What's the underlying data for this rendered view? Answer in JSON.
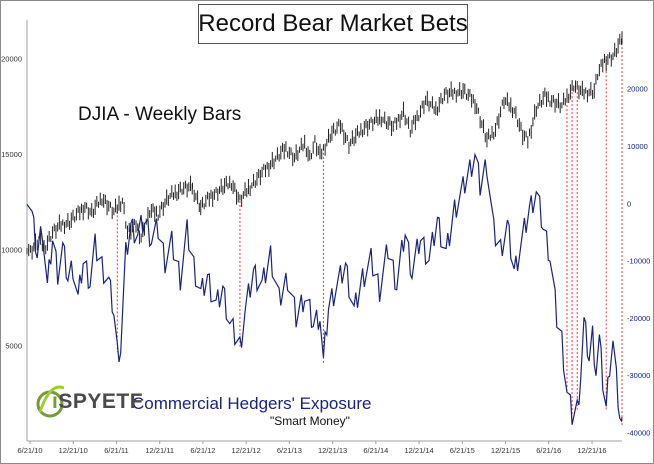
{
  "title": "Record Bear Market Bets",
  "annotations": {
    "djia": "DJIA - Weekly Bars",
    "hedgers": "Commercial Hedgers' Exposure",
    "smart_money": "\"Smart Money\""
  },
  "logo": {
    "text": "iSPYETF",
    "icon": "globe-swoosh-icon"
  },
  "colors": {
    "djia": "#222222",
    "hedgers": "#1a237e",
    "marker": "#e53935",
    "hedgers_extreme": "#d81b60"
  },
  "chart_data": {
    "type": "line",
    "title": "Record Bear Market Bets",
    "x_ticks": [
      "6/21/10",
      "12/21/10",
      "6/21/11",
      "12/21/11",
      "6/21/12",
      "12/21/12",
      "6/21/13",
      "12/21/13",
      "6/21/14",
      "12/21/14",
      "6/21/15",
      "12/21/15",
      "6/21/16",
      "12/21/16"
    ],
    "x_range": [
      "2010-06-21",
      "2017-03-01"
    ],
    "left_axis": {
      "ticks": [
        5000,
        10000,
        15000,
        20000
      ],
      "ylim": [
        0,
        22000
      ]
    },
    "right_axis": {
      "ticks": [
        -40000,
        -30000,
        -20000,
        -10000,
        0,
        10000,
        20000
      ],
      "ylim": [
        -41500,
        32000
      ]
    },
    "grid": false,
    "series": [
      {
        "name": "DJIA - Weekly Bars",
        "axis": "left",
        "style": "ohlc-bars",
        "points": [
          [
            "2010-06-21",
            10150
          ],
          [
            "2010-07-05",
            9900
          ],
          [
            "2010-08-09",
            10500
          ],
          [
            "2010-08-30",
            10050
          ],
          [
            "2010-10-04",
            10900
          ],
          [
            "2010-11-08",
            11300
          ],
          [
            "2010-12-13",
            11450
          ],
          [
            "2011-02-14",
            12250
          ],
          [
            "2011-03-14",
            11900
          ],
          [
            "2011-04-25",
            12700
          ],
          [
            "2011-06-13",
            11950
          ],
          [
            "2011-07-18",
            12600
          ],
          [
            "2011-08-08",
            10900
          ],
          [
            "2011-09-12",
            11300
          ],
          [
            "2011-10-03",
            10650
          ],
          [
            "2011-11-07",
            12000
          ],
          [
            "2011-12-12",
            11900
          ],
          [
            "2012-01-23",
            12700
          ],
          [
            "2012-03-19",
            13200
          ],
          [
            "2012-05-01",
            13250
          ],
          [
            "2012-06-04",
            12200
          ],
          [
            "2012-07-16",
            12800
          ],
          [
            "2012-09-10",
            13300
          ],
          [
            "2012-10-08",
            13500
          ],
          [
            "2012-11-12",
            12550
          ],
          [
            "2012-12-17",
            13200
          ],
          [
            "2013-01-21",
            13700
          ],
          [
            "2013-03-04",
            14300
          ],
          [
            "2013-05-20",
            15300
          ],
          [
            "2013-06-24",
            14800
          ],
          [
            "2013-08-05",
            15550
          ],
          [
            "2013-08-26",
            14800
          ],
          [
            "2013-09-16",
            15600
          ],
          [
            "2013-10-07",
            14900
          ],
          [
            "2013-11-18",
            16000
          ],
          [
            "2013-12-30",
            16500
          ],
          [
            "2014-02-03",
            15500
          ],
          [
            "2014-04-07",
            16400
          ],
          [
            "2014-06-16",
            16900
          ],
          [
            "2014-08-04",
            16400
          ],
          [
            "2014-09-15",
            17200
          ],
          [
            "2014-10-13",
            16200
          ],
          [
            "2014-12-15",
            17800
          ],
          [
            "2015-01-26",
            17300
          ],
          [
            "2015-03-02",
            18100
          ],
          [
            "2015-05-18",
            18300
          ],
          [
            "2015-07-06",
            17700
          ],
          [
            "2015-08-24",
            15700
          ],
          [
            "2015-09-28",
            16300
          ],
          [
            "2015-11-02",
            17800
          ],
          [
            "2015-12-14",
            17300
          ],
          [
            "2016-01-18",
            16000
          ],
          [
            "2016-02-08",
            15700
          ],
          [
            "2016-03-14",
            17400
          ],
          [
            "2016-04-18",
            18000
          ],
          [
            "2016-06-27",
            17500
          ],
          [
            "2016-08-15",
            18600
          ],
          [
            "2016-09-19",
            18200
          ],
          [
            "2016-11-07",
            18300
          ],
          [
            "2016-11-21",
            19150
          ],
          [
            "2016-12-19",
            19900
          ],
          [
            "2017-01-23",
            20100
          ],
          [
            "2017-02-13",
            20600
          ],
          [
            "2017-03-01",
            21000
          ]
        ]
      },
      {
        "name": "Commercial Hedgers' Exposure",
        "axis": "right",
        "points": [
          [
            "2010-06-21",
            2000
          ],
          [
            "2010-07-12",
            -2500
          ],
          [
            "2010-08-02",
            -9000
          ],
          [
            "2010-08-23",
            -4000
          ],
          [
            "2010-09-13",
            -15000
          ],
          [
            "2010-10-04",
            -6000
          ],
          [
            "2010-10-25",
            -12000
          ],
          [
            "2010-11-15",
            -8000
          ],
          [
            "2010-12-06",
            -13000
          ],
          [
            "2010-12-27",
            -11000
          ],
          [
            "2011-01-17",
            -17000
          ],
          [
            "2011-02-07",
            -10000
          ],
          [
            "2011-03-07",
            -13500
          ],
          [
            "2011-03-28",
            -7500
          ],
          [
            "2011-04-25",
            -11000
          ],
          [
            "2011-05-23",
            -14000
          ],
          [
            "2011-06-13",
            -19000
          ],
          [
            "2011-06-27",
            -26000
          ],
          [
            "2011-07-11",
            -25000
          ],
          [
            "2011-08-01",
            -9000
          ],
          [
            "2011-08-22",
            -4000
          ],
          [
            "2011-09-19",
            -5500
          ],
          [
            "2011-10-17",
            -3000
          ],
          [
            "2011-11-14",
            -6000
          ],
          [
            "2011-12-12",
            -4500
          ],
          [
            "2012-01-09",
            -10000
          ],
          [
            "2012-02-06",
            -7000
          ],
          [
            "2012-03-12",
            -13000
          ],
          [
            "2012-04-09",
            -5000
          ],
          [
            "2012-05-07",
            -11000
          ],
          [
            "2012-06-04",
            -16000
          ],
          [
            "2012-07-02",
            -13000
          ],
          [
            "2012-08-06",
            -18000
          ],
          [
            "2012-09-03",
            -15000
          ],
          [
            "2012-10-01",
            -21000
          ],
          [
            "2012-11-12",
            -25000
          ],
          [
            "2012-12-03",
            -19000
          ],
          [
            "2013-01-07",
            -12000
          ],
          [
            "2013-02-11",
            -14500
          ],
          [
            "2013-03-18",
            -9000
          ],
          [
            "2013-04-22",
            -17000
          ],
          [
            "2013-05-27",
            -13000
          ],
          [
            "2013-07-01",
            -20000
          ],
          [
            "2013-08-05",
            -16000
          ],
          [
            "2013-09-09",
            -21000
          ],
          [
            "2013-10-07",
            -19500
          ],
          [
            "2013-10-21",
            -28000
          ],
          [
            "2013-11-11",
            -18000
          ],
          [
            "2013-12-09",
            -15000
          ],
          [
            "2014-01-20",
            -11000
          ],
          [
            "2014-02-24",
            -19000
          ],
          [
            "2014-03-31",
            -13000
          ],
          [
            "2014-05-05",
            -10000
          ],
          [
            "2014-06-09",
            -15000
          ],
          [
            "2014-07-14",
            -8000
          ],
          [
            "2014-08-18",
            -14000
          ],
          [
            "2014-09-22",
            -5000
          ],
          [
            "2014-10-20",
            -12000
          ],
          [
            "2014-11-24",
            -6000
          ],
          [
            "2014-12-29",
            -10000
          ],
          [
            "2015-02-02",
            -3000
          ],
          [
            "2015-03-09",
            -9000
          ],
          [
            "2015-04-13",
            -1000
          ],
          [
            "2015-05-18",
            2500
          ],
          [
            "2015-06-15",
            6000
          ],
          [
            "2015-07-06",
            8500
          ],
          [
            "2015-07-27",
            3000
          ],
          [
            "2015-08-24",
            7000
          ],
          [
            "2015-09-21",
            -5000
          ],
          [
            "2015-10-19",
            -8000
          ],
          [
            "2015-11-16",
            -4000
          ],
          [
            "2015-12-14",
            -12000
          ],
          [
            "2016-01-18",
            -6000
          ],
          [
            "2016-02-15",
            -1000
          ],
          [
            "2016-03-14",
            2000
          ],
          [
            "2016-04-11",
            -4000
          ],
          [
            "2016-05-09",
            -9000
          ],
          [
            "2016-06-06",
            -20000
          ],
          [
            "2016-06-27",
            -24000
          ],
          [
            "2016-07-18",
            -33000
          ],
          [
            "2016-08-08",
            -37000
          ],
          [
            "2016-08-29",
            -36000
          ],
          [
            "2016-09-12",
            -30000
          ],
          [
            "2016-09-26",
            -21000
          ],
          [
            "2016-10-17",
            -27000
          ],
          [
            "2016-10-31",
            -23000
          ],
          [
            "2016-11-14",
            -29000
          ],
          [
            "2016-11-28",
            -24000
          ],
          [
            "2016-12-12",
            -31000
          ],
          [
            "2016-12-26",
            -36000
          ],
          [
            "2017-01-09",
            -28000
          ],
          [
            "2017-01-23",
            -24000
          ],
          [
            "2017-02-06",
            -31000
          ],
          [
            "2017-02-20",
            -37000
          ],
          [
            "2017-03-01",
            -39000
          ]
        ]
      }
    ],
    "marker_dates": [
      "2011-06-27",
      "2012-11-12",
      "2013-10-21",
      "2016-07-18",
      "2016-08-08",
      "2016-08-29",
      "2016-12-26",
      "2017-03-01"
    ]
  }
}
